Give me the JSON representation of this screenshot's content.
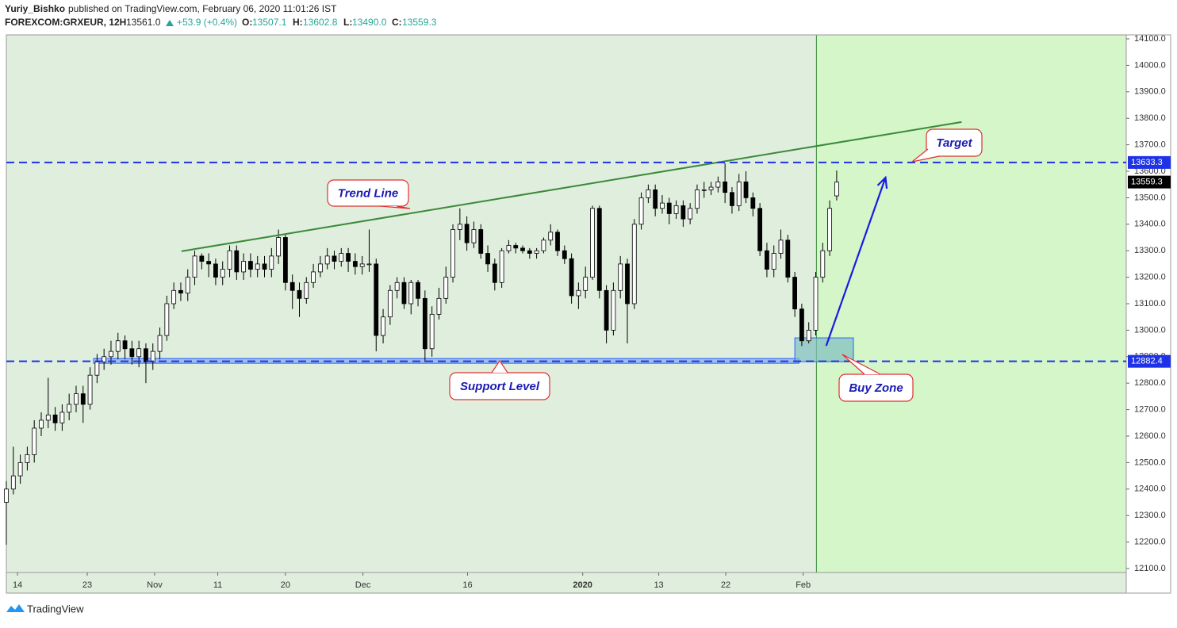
{
  "header": {
    "author": "Yuriy_Bishko",
    "published": "published on TradingView.com, February 06, 2020 11:01:26 IST",
    "symbol": "FOREXCOM:GRXEUR, 12H",
    "last": "13561.0",
    "change": "+53.9 (+0.4%)",
    "o_label": "O:",
    "o": "13507.1",
    "h_label": "H:",
    "h": "13602.8",
    "l_label": "L:",
    "l": "13490.0",
    "c_label": "C:",
    "c": "13559.3"
  },
  "footer": "TradingView",
  "chart_data": {
    "type": "candlestick",
    "up_color": "#ffffff",
    "down_color": "#000000",
    "open": [
      12350,
      12400,
      12450,
      12500,
      12530,
      12630,
      12660,
      12680,
      12650,
      12690,
      12720,
      12760,
      12720,
      12830,
      12880,
      12900,
      12920,
      12960,
      12930,
      12900,
      12930,
      12880,
      12920,
      12980,
      13100,
      13150,
      13140,
      13200,
      13280,
      13260,
      13250,
      13200,
      13230,
      13300,
      13220,
      13260,
      13230,
      13250,
      13230,
      13280,
      13350,
      13180,
      13150,
      13120,
      13180,
      13220,
      13250,
      13280,
      13260,
      13290,
      13260,
      13240,
      13250,
      13250,
      12980,
      13050,
      13150,
      13180,
      13100,
      13180,
      13120,
      12930,
      13060,
      13120,
      13200,
      13380,
      13400,
      13330,
      13380,
      13290,
      13250,
      13180,
      13300,
      13320,
      13310,
      13300,
      13290,
      13300,
      13340,
      13370,
      13300,
      13270,
      13130,
      13150,
      13200,
      13460,
      13150,
      13000,
      13150,
      13250,
      13100,
      13400,
      13500,
      13530,
      13460,
      13480,
      13440,
      13470,
      13420,
      13460,
      13530,
      13530,
      13540,
      13560,
      13520,
      13470,
      13560,
      13500,
      13460,
      13300,
      13230,
      13290,
      13340,
      13200,
      13080,
      12960,
      13000,
      13200,
      13300,
      13507.1
    ],
    "high": [
      12430,
      12560,
      12530,
      12560,
      12660,
      12690,
      12820,
      12710,
      12720,
      12760,
      12790,
      12790,
      12860,
      12910,
      12930,
      12960,
      12990,
      12980,
      12960,
      12960,
      12950,
      12950,
      13010,
      13130,
      13180,
      13180,
      13230,
      13300,
      13290,
      13290,
      13270,
      13260,
      13320,
      13320,
      13290,
      13290,
      13280,
      13280,
      13310,
      13380,
      13360,
      13210,
      13180,
      13200,
      13250,
      13280,
      13310,
      13300,
      13310,
      13310,
      13290,
      13280,
      13380,
      13270,
      13080,
      13170,
      13200,
      13200,
      13190,
      13190,
      13150,
      13090,
      13160,
      13240,
      13400,
      13460,
      13430,
      13410,
      13400,
      13320,
      13270,
      13310,
      13340,
      13330,
      13320,
      13310,
      13310,
      13350,
      13400,
      13380,
      13320,
      13290,
      13180,
      13240,
      13470,
      13470,
      13170,
      13180,
      13280,
      13270,
      13420,
      13520,
      13550,
      13550,
      13510,
      13500,
      13490,
      13490,
      13480,
      13550,
      13560,
      13560,
      13580,
      13630,
      13540,
      13590,
      13600,
      13520,
      13480,
      13330,
      13320,
      13380,
      13360,
      13220,
      13100,
      13030,
      13220,
      13330,
      13490,
      13602.8
    ],
    "low": [
      12190,
      12380,
      12420,
      12470,
      12500,
      12600,
      12630,
      12620,
      12620,
      12660,
      12690,
      12650,
      12700,
      12800,
      12850,
      12870,
      12890,
      12890,
      12870,
      12860,
      12800,
      12850,
      12890,
      12960,
      13080,
      13110,
      13110,
      13170,
      13230,
      13200,
      13170,
      13170,
      13200,
      13190,
      13190,
      13200,
      13200,
      13200,
      13200,
      13250,
      13150,
      13080,
      13050,
      13100,
      13160,
      13200,
      13230,
      13230,
      13240,
      13220,
      13210,
      13210,
      13220,
      12920,
      12950,
      13020,
      13120,
      13080,
      13060,
      13090,
      12880,
      12900,
      13040,
      13100,
      13180,
      13340,
      13300,
      13310,
      13270,
      13220,
      13150,
      13160,
      13290,
      13290,
      13290,
      13270,
      13270,
      13290,
      13320,
      13280,
      13250,
      13100,
      13080,
      13120,
      13190,
      13120,
      12950,
      12980,
      13120,
      12950,
      13080,
      13380,
      13480,
      13430,
      13440,
      13400,
      13420,
      13390,
      13400,
      13440,
      13500,
      13510,
      13520,
      13480,
      13440,
      13450,
      13480,
      13430,
      13280,
      13200,
      13200,
      13270,
      13180,
      13050,
      12940,
      12950,
      12980,
      13180,
      13280,
      13490
    ],
    "close": [
      12400,
      12450,
      12500,
      12530,
      12630,
      12660,
      12680,
      12650,
      12690,
      12720,
      12760,
      12720,
      12830,
      12880,
      12900,
      12920,
      12960,
      12930,
      12900,
      12930,
      12880,
      12920,
      12980,
      13100,
      13150,
      13140,
      13200,
      13280,
      13260,
      13250,
      13200,
      13230,
      13300,
      13220,
      13260,
      13230,
      13250,
      13230,
      13280,
      13350,
      13180,
      13150,
      13120,
      13180,
      13220,
      13250,
      13280,
      13260,
      13290,
      13260,
      13240,
      13250,
      13250,
      12980,
      13050,
      13150,
      13180,
      13100,
      13180,
      13120,
      12930,
      13060,
      13120,
      13200,
      13380,
      13400,
      13330,
      13380,
      13290,
      13250,
      13180,
      13300,
      13320,
      13310,
      13300,
      13290,
      13300,
      13340,
      13370,
      13300,
      13270,
      13130,
      13150,
      13200,
      13460,
      13150,
      13000,
      13150,
      13250,
      13100,
      13400,
      13500,
      13530,
      13460,
      13480,
      13440,
      13470,
      13420,
      13460,
      13530,
      13530,
      13540,
      13560,
      13520,
      13470,
      13560,
      13500,
      13460,
      13300,
      13230,
      13290,
      13340,
      13200,
      13080,
      12960,
      13000,
      13200,
      13300,
      13460,
      13559.3
    ],
    "xlim": [
      0,
      160.5
    ],
    "xticks": [
      {
        "value": 1.6,
        "label": "14"
      },
      {
        "value": 11.6,
        "label": "23"
      },
      {
        "value": 21.25,
        "label": "Nov"
      },
      {
        "value": 30.3,
        "label": "11"
      },
      {
        "value": 40,
        "label": "20"
      },
      {
        "value": 51.1,
        "label": "Dec"
      },
      {
        "value": 66.1,
        "label": "16"
      },
      {
        "value": 82.6,
        "label": "2020"
      },
      {
        "value": 93.5,
        "label": "13"
      },
      {
        "value": 103.1,
        "label": "22"
      },
      {
        "value": 114.2,
        "label": "Feb"
      }
    ],
    "ylim": [
      12085,
      14115
    ],
    "yticks": [
      {
        "value": 12100,
        "label": "12100.0"
      },
      {
        "value": 12200,
        "label": "12200.0"
      },
      {
        "value": 12300,
        "label": "12300.0"
      },
      {
        "value": 12400,
        "label": "12400.0"
      },
      {
        "value": 12500,
        "label": "12500.0"
      },
      {
        "value": 12600,
        "label": "12600.0"
      },
      {
        "value": 12700,
        "label": "12700.0"
      },
      {
        "value": 12800,
        "label": "12800.0"
      },
      {
        "value": 12900,
        "label": "12900.0"
      },
      {
        "value": 13000,
        "label": "13000.0"
      },
      {
        "value": 13100,
        "label": "13100.0"
      },
      {
        "value": 13200,
        "label": "13200.0"
      },
      {
        "value": 13300,
        "label": "13300.0"
      },
      {
        "value": 13400,
        "label": "13400.0"
      },
      {
        "value": 13500,
        "label": "13500.0"
      },
      {
        "value": 13600,
        "label": "13600.0"
      },
      {
        "value": 13700,
        "label": "13700.0"
      },
      {
        "value": 13800,
        "label": "13800.0"
      },
      {
        "value": 13900,
        "label": "13900.0"
      },
      {
        "value": 14000,
        "label": "14000.0"
      },
      {
        "value": 14100,
        "label": "14100.0"
      }
    ],
    "hlines": [
      {
        "value": 13633.3,
        "color": "#1e32e6"
      },
      {
        "value": 12882.4,
        "color": "#1e32e6"
      }
    ],
    "highlight_from": 116.1,
    "trend_line": {
      "x": [
        25.1,
        136.9
      ],
      "y": [
        13298,
        13786
      ],
      "color": "#3a8a3a"
    },
    "arrow": {
      "x": [
        117.5,
        126
      ],
      "y": [
        12941,
        13576
      ],
      "color": "#1a1ae6"
    },
    "zones": [
      {
        "x": [
          12.5,
          113.6
        ],
        "y": [
          12875,
          12893
        ],
        "color": "#2962ff"
      },
      {
        "x": [
          113,
          121.4
        ],
        "y": [
          12881,
          12971
        ],
        "color": "#2962ff"
      }
    ],
    "annotations": [
      "Trend Line",
      "Support Level",
      "Target",
      "Buy Zone"
    ]
  }
}
